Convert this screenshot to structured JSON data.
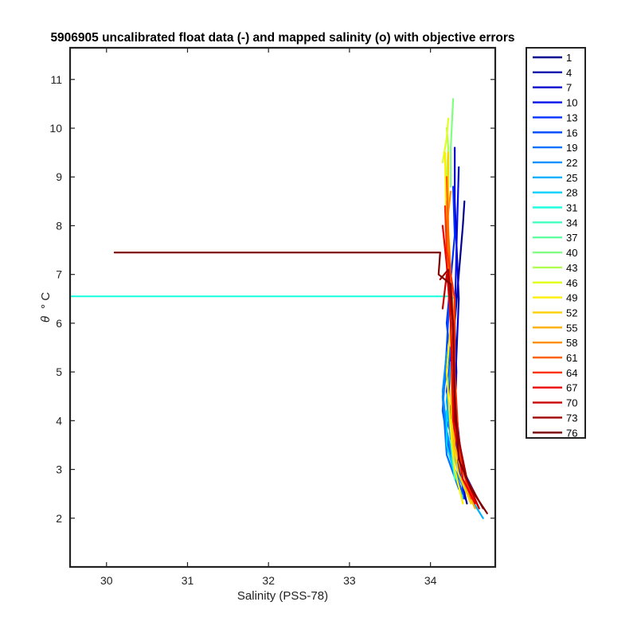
{
  "chart_data": {
    "type": "line",
    "title": "5906905 uncalibrated float data (-) and mapped salinity (o) with objective errors",
    "xlabel": "Salinity (PSS-78)",
    "ylabel_symbol": "θ",
    "ylabel_unit": "° C",
    "xlim": [
      29.55,
      34.8
    ],
    "ylim": [
      1,
      11.65
    ],
    "xticks": [
      30,
      31,
      32,
      33,
      34
    ],
    "yticks": [
      2,
      3,
      4,
      5,
      6,
      7,
      8,
      9,
      10,
      11
    ],
    "grid": false,
    "legend": {
      "position": "outside-right",
      "entries": [
        {
          "label": "1",
          "color": "#00008f"
        },
        {
          "label": "4",
          "color": "#0000ae"
        },
        {
          "label": "7",
          "color": "#0000cd"
        },
        {
          "label": "10",
          "color": "#0010ea"
        },
        {
          "label": "13",
          "color": "#0030ff"
        },
        {
          "label": "16",
          "color": "#0050ff"
        },
        {
          "label": "19",
          "color": "#0070ff"
        },
        {
          "label": "22",
          "color": "#0090ff"
        },
        {
          "label": "25",
          "color": "#00b0ff"
        },
        {
          "label": "28",
          "color": "#00d0ff"
        },
        {
          "label": "31",
          "color": "#20ffdf"
        },
        {
          "label": "34",
          "color": "#40ffbf"
        },
        {
          "label": "37",
          "color": "#60ff9f"
        },
        {
          "label": "40",
          "color": "#80ff80"
        },
        {
          "label": "43",
          "color": "#b0ff50"
        },
        {
          "label": "46",
          "color": "#e0ff20"
        },
        {
          "label": "49",
          "color": "#ffef00"
        },
        {
          "label": "52",
          "color": "#ffcf00"
        },
        {
          "label": "55",
          "color": "#ffaf00"
        },
        {
          "label": "58",
          "color": "#ff8f00"
        },
        {
          "label": "61",
          "color": "#ff6000"
        },
        {
          "label": "64",
          "color": "#ff3000"
        },
        {
          "label": "67",
          "color": "#ef0000"
        },
        {
          "label": "70",
          "color": "#c80000"
        },
        {
          "label": "73",
          "color": "#a00000"
        },
        {
          "label": "76",
          "color": "#800000"
        }
      ]
    },
    "series": [
      {
        "color": "#00008f",
        "points": [
          [
            34.45,
            2.3
          ],
          [
            34.35,
            3.0
          ],
          [
            34.3,
            4.0
          ],
          [
            34.32,
            5.0
          ],
          [
            34.3,
            6.0
          ],
          [
            34.35,
            7.0
          ],
          [
            34.4,
            8.0
          ],
          [
            34.42,
            8.5
          ]
        ]
      },
      {
        "color": "#0000cd",
        "points": [
          [
            34.5,
            2.5
          ],
          [
            34.38,
            3.2
          ],
          [
            34.3,
            4.5
          ],
          [
            34.35,
            6.5
          ],
          [
            34.3,
            8.5
          ],
          [
            34.3,
            9.6
          ]
        ]
      },
      {
        "color": "#0010ea",
        "points": [
          [
            34.42,
            2.4
          ],
          [
            34.32,
            3.5
          ],
          [
            34.2,
            4.6
          ],
          [
            34.3,
            6.0
          ],
          [
            34.32,
            7.5
          ],
          [
            34.35,
            9.2
          ]
        ]
      },
      {
        "color": "#0030ff",
        "points": [
          [
            34.55,
            2.5
          ],
          [
            34.4,
            3.0
          ],
          [
            34.2,
            4.0
          ],
          [
            34.25,
            5.2
          ],
          [
            34.2,
            6.0
          ],
          [
            34.3,
            7.8
          ],
          [
            34.28,
            8.8
          ]
        ]
      },
      {
        "color": "#0050ff",
        "points": [
          [
            34.4,
            2.5
          ],
          [
            34.25,
            3.2
          ],
          [
            34.15,
            4.2
          ],
          [
            34.2,
            5.5
          ],
          [
            34.25,
            7.0
          ],
          [
            34.2,
            8.2
          ]
        ]
      },
      {
        "color": "#0070ff",
        "points": [
          [
            34.35,
            2.6
          ],
          [
            34.2,
            3.3
          ],
          [
            34.15,
            4.5
          ],
          [
            34.25,
            5.5
          ]
        ]
      },
      {
        "color": "#0090ff",
        "points": [
          [
            34.45,
            2.5
          ],
          [
            34.3,
            3.0
          ],
          [
            34.2,
            3.8
          ],
          [
            34.15,
            4.6
          ],
          [
            34.2,
            5.4
          ]
        ]
      },
      {
        "color": "#00b0ff",
        "points": [
          [
            34.65,
            2.0
          ],
          [
            34.5,
            2.4
          ],
          [
            34.35,
            2.9
          ],
          [
            34.25,
            3.6
          ],
          [
            34.2,
            4.4
          ],
          [
            34.25,
            5.2
          ]
        ]
      },
      {
        "color": "#00d0ff",
        "points": [
          [
            34.4,
            2.4
          ],
          [
            34.3,
            2.9
          ],
          [
            34.2,
            3.5
          ],
          [
            34.2,
            4.2
          ]
        ]
      },
      {
        "color": "#20ffdf",
        "points": [
          [
            29.55,
            6.55
          ],
          [
            34.25,
            6.55
          ],
          [
            34.3,
            6.5
          ],
          [
            34.3,
            5.2
          ]
        ]
      },
      {
        "color": "#40ffbf",
        "points": [
          [
            34.3,
            2.8
          ],
          [
            34.25,
            3.6
          ]
        ]
      },
      {
        "color": "#80ff80",
        "points": [
          [
            34.25,
            8.8
          ],
          [
            34.25,
            9.6
          ],
          [
            34.28,
            10.6
          ]
        ]
      },
      {
        "color": "#b0ff50",
        "points": [
          [
            34.2,
            9.0
          ],
          [
            34.22,
            9.6
          ],
          [
            34.2,
            10.0
          ]
        ]
      },
      {
        "color": "#e0ff20",
        "points": [
          [
            34.15,
            9.3
          ],
          [
            34.2,
            9.8
          ],
          [
            34.22,
            10.2
          ]
        ]
      },
      {
        "color": "#ffef00",
        "points": [
          [
            34.4,
            2.3
          ],
          [
            34.3,
            3.0
          ],
          [
            34.25,
            3.8
          ],
          [
            34.2,
            5.0
          ],
          [
            34.25,
            6.0
          ],
          [
            34.2,
            7.5
          ],
          [
            34.18,
            9.5
          ]
        ]
      },
      {
        "color": "#ffcf00",
        "points": [
          [
            34.5,
            2.3
          ],
          [
            34.35,
            2.9
          ],
          [
            34.28,
            3.5
          ],
          [
            34.25,
            4.5
          ],
          [
            34.28,
            6.0
          ],
          [
            34.25,
            7.0
          ],
          [
            34.22,
            8.0
          ],
          [
            34.22,
            9.5
          ]
        ]
      },
      {
        "color": "#ffaf00",
        "points": [
          [
            34.55,
            2.2
          ],
          [
            34.4,
            2.8
          ],
          [
            34.3,
            3.5
          ],
          [
            34.22,
            7.5
          ],
          [
            34.2,
            8.5
          ]
        ]
      },
      {
        "color": "#ff8f00",
        "points": [
          [
            34.5,
            2.4
          ],
          [
            34.38,
            3.1
          ],
          [
            34.3,
            4.0
          ],
          [
            34.25,
            6.0
          ],
          [
            34.2,
            8.0
          ],
          [
            34.25,
            8.7
          ]
        ]
      },
      {
        "color": "#ff6000",
        "points": [
          [
            34.5,
            2.4
          ],
          [
            34.35,
            3.3
          ],
          [
            34.28,
            4.8
          ],
          [
            34.28,
            6.2
          ],
          [
            34.22,
            7.8
          ],
          [
            34.2,
            9.0
          ]
        ]
      },
      {
        "color": "#ff3000",
        "points": [
          [
            34.6,
            2.2
          ],
          [
            34.45,
            2.7
          ],
          [
            34.35,
            3.5
          ],
          [
            34.3,
            5.0
          ],
          [
            34.3,
            6.5
          ],
          [
            34.2,
            7.5
          ],
          [
            34.18,
            8.4
          ]
        ]
      },
      {
        "color": "#ef0000",
        "points": [
          [
            34.55,
            2.3
          ],
          [
            34.4,
            2.8
          ],
          [
            34.28,
            4.0
          ],
          [
            34.25,
            6.0
          ],
          [
            34.2,
            7.2
          ],
          [
            34.15,
            8.0
          ]
        ]
      },
      {
        "color": "#c80000",
        "points": [
          [
            34.6,
            2.2
          ],
          [
            34.42,
            2.9
          ],
          [
            34.3,
            4.2
          ],
          [
            34.28,
            6.0
          ],
          [
            34.2,
            7.0
          ],
          [
            34.15,
            6.3
          ]
        ]
      },
      {
        "color": "#a00000",
        "points": [
          [
            34.65,
            2.2
          ],
          [
            34.45,
            2.8
          ],
          [
            34.3,
            4.0
          ],
          [
            34.28,
            6.0
          ],
          [
            34.22,
            7.1
          ],
          [
            34.12,
            6.9
          ]
        ]
      },
      {
        "color": "#800000",
        "points": [
          [
            34.7,
            2.1
          ],
          [
            34.5,
            2.6
          ],
          [
            34.35,
            3.2
          ],
          [
            34.3,
            4.5
          ],
          [
            34.28,
            5.8
          ],
          [
            34.25,
            6.8
          ],
          [
            34.1,
            7.0
          ],
          [
            34.12,
            7.45
          ],
          [
            30.1,
            7.45
          ]
        ]
      }
    ]
  }
}
